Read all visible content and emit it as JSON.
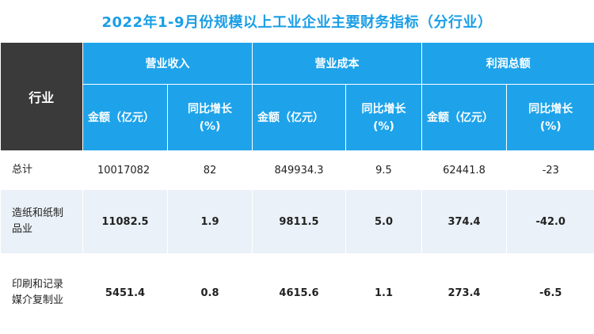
{
  "title": "2022年1-9月份规模以上工业企业主要财务指标（分行业）",
  "header": {
    "industry": "行业",
    "groups": [
      "营业收入",
      "营业成本",
      "利润总额"
    ],
    "amount": "金额（亿元）",
    "growth_line1": "同比增长",
    "growth_line2": "(%)"
  },
  "rows": [
    {
      "industry_line1": "总计",
      "industry_line2": "",
      "values": [
        "10017082",
        "82",
        "849934.3",
        "9.5",
        "62441.8",
        "-23"
      ]
    },
    {
      "industry_line1": "造纸和纸制",
      "industry_line2": "品业",
      "values": [
        "11082.5",
        "1.9",
        "9811.5",
        "5.0",
        "374.4",
        "-42.0"
      ]
    },
    {
      "industry_line1": "印刷和记录",
      "industry_line2": "媒介复制业",
      "values": [
        "5451.4",
        "0.8",
        "4615.6",
        "1.1",
        "273.4",
        "-6.5"
      ]
    }
  ]
}
